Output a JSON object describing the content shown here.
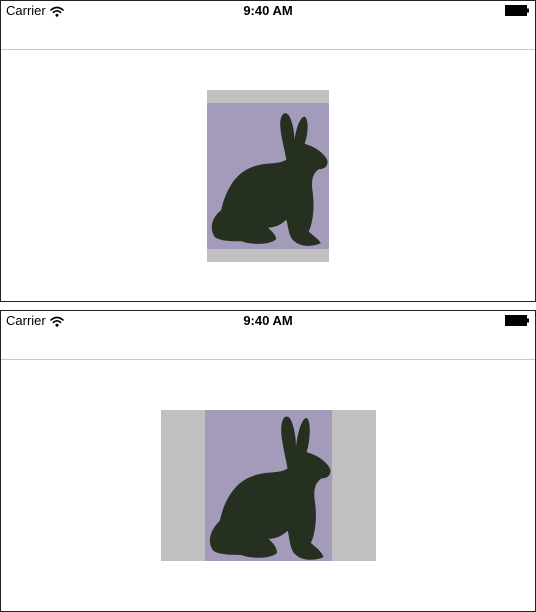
{
  "screens": [
    {
      "status_bar": {
        "carrier": "Carrier",
        "time": "9:40 AM",
        "wifi_icon": "wifi-icon",
        "battery_icon": "battery-icon"
      },
      "image_view": {
        "content": "rabbit-silhouette",
        "background_color": "#c0c0c0",
        "image_color": "#a49bbb",
        "silhouette_color": "#253020"
      }
    },
    {
      "status_bar": {
        "carrier": "Carrier",
        "time": "9:40 AM",
        "wifi_icon": "wifi-icon",
        "battery_icon": "battery-icon"
      },
      "image_view": {
        "content": "rabbit-silhouette",
        "background_color": "#c0c0c0",
        "image_color": "#a49bbb",
        "silhouette_color": "#253020"
      }
    }
  ]
}
